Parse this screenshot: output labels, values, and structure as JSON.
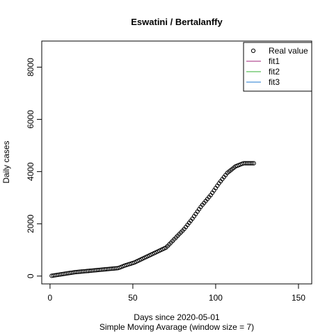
{
  "chart_data": {
    "type": "scatter",
    "title": "Eswatini / Bertalanffy",
    "xlabel": "Days since 2020-05-01",
    "subtitle": "Simple Moving Avarage (window size = 7)",
    "ylabel": "Daily cases",
    "xlim": [
      -5,
      158
    ],
    "ylim": [
      -300,
      9000
    ],
    "xticks": [
      0,
      50,
      100,
      150
    ],
    "yticks": [
      0,
      2000,
      4000,
      6000,
      8000
    ],
    "xtick_labels": [
      "0",
      "50",
      "100",
      "150"
    ],
    "ytick_labels": [
      "0",
      "2000",
      "4000",
      "6000",
      "8000"
    ],
    "legend_position": "top-right",
    "legend": [
      {
        "label": "Real value",
        "kind": "point",
        "color": "#000000"
      },
      {
        "label": "fit1",
        "kind": "line",
        "color": "#a0267a"
      },
      {
        "label": "fit2",
        "kind": "line",
        "color": "#33b233"
      },
      {
        "label": "fit3",
        "kind": "line",
        "color": "#1f78d1"
      }
    ],
    "series": [
      {
        "name": "Real value",
        "x": [
          1,
          2,
          3,
          4,
          5,
          6,
          7,
          8,
          9,
          10,
          11,
          12,
          13,
          14,
          15,
          16,
          17,
          18,
          19,
          20,
          21,
          22,
          23,
          24,
          25,
          26,
          27,
          28,
          29,
          30,
          31,
          32,
          33,
          34,
          35,
          36,
          37,
          38,
          39,
          40,
          41,
          42,
          43,
          44,
          45,
          46,
          47,
          48,
          49,
          50,
          51,
          52,
          53,
          54,
          55,
          56,
          57,
          58,
          59,
          60,
          61,
          62,
          63,
          64,
          65,
          66,
          67,
          68,
          69,
          70,
          71,
          72,
          73,
          74,
          75,
          76,
          77,
          78,
          79,
          80,
          81,
          82,
          83,
          84,
          85,
          86,
          87,
          88,
          89,
          90,
          91,
          92,
          93,
          94,
          95,
          96,
          97,
          98,
          99,
          100,
          101,
          102,
          103,
          104,
          105,
          106,
          107,
          108,
          109,
          110,
          111,
          112,
          113,
          114,
          115,
          116,
          117,
          118,
          119,
          120,
          121,
          122,
          123
        ],
        "y": [
          10,
          20,
          30,
          40,
          50,
          59,
          69,
          79,
          89,
          99,
          109,
          119,
          128,
          138,
          148,
          154,
          160,
          166,
          172,
          178,
          184,
          190,
          196,
          202,
          208,
          214,
          220,
          226,
          232,
          238,
          244,
          250,
          256,
          262,
          268,
          274,
          280,
          286,
          292,
          298,
          305,
          325,
          350,
          375,
          400,
          420,
          440,
          460,
          480,
          500,
          520,
          550,
          580,
          610,
          640,
          670,
          700,
          730,
          760,
          790,
          820,
          850,
          880,
          910,
          940,
          970,
          1000,
          1030,
          1060,
          1090,
          1150,
          1215,
          1280,
          1345,
          1410,
          1475,
          1540,
          1605,
          1670,
          1735,
          1800,
          1880,
          1960,
          2040,
          2120,
          2200,
          2290,
          2380,
          2470,
          2560,
          2650,
          2725,
          2800,
          2875,
          2950,
          3025,
          3100,
          3190,
          3280,
          3370,
          3460,
          3550,
          3630,
          3710,
          3790,
          3870,
          3950,
          4000,
          4050,
          4100,
          4150,
          4200,
          4225,
          4250,
          4275,
          4300,
          4320,
          4320,
          4320,
          4320,
          4320,
          4320,
          4320
        ]
      }
    ]
  }
}
